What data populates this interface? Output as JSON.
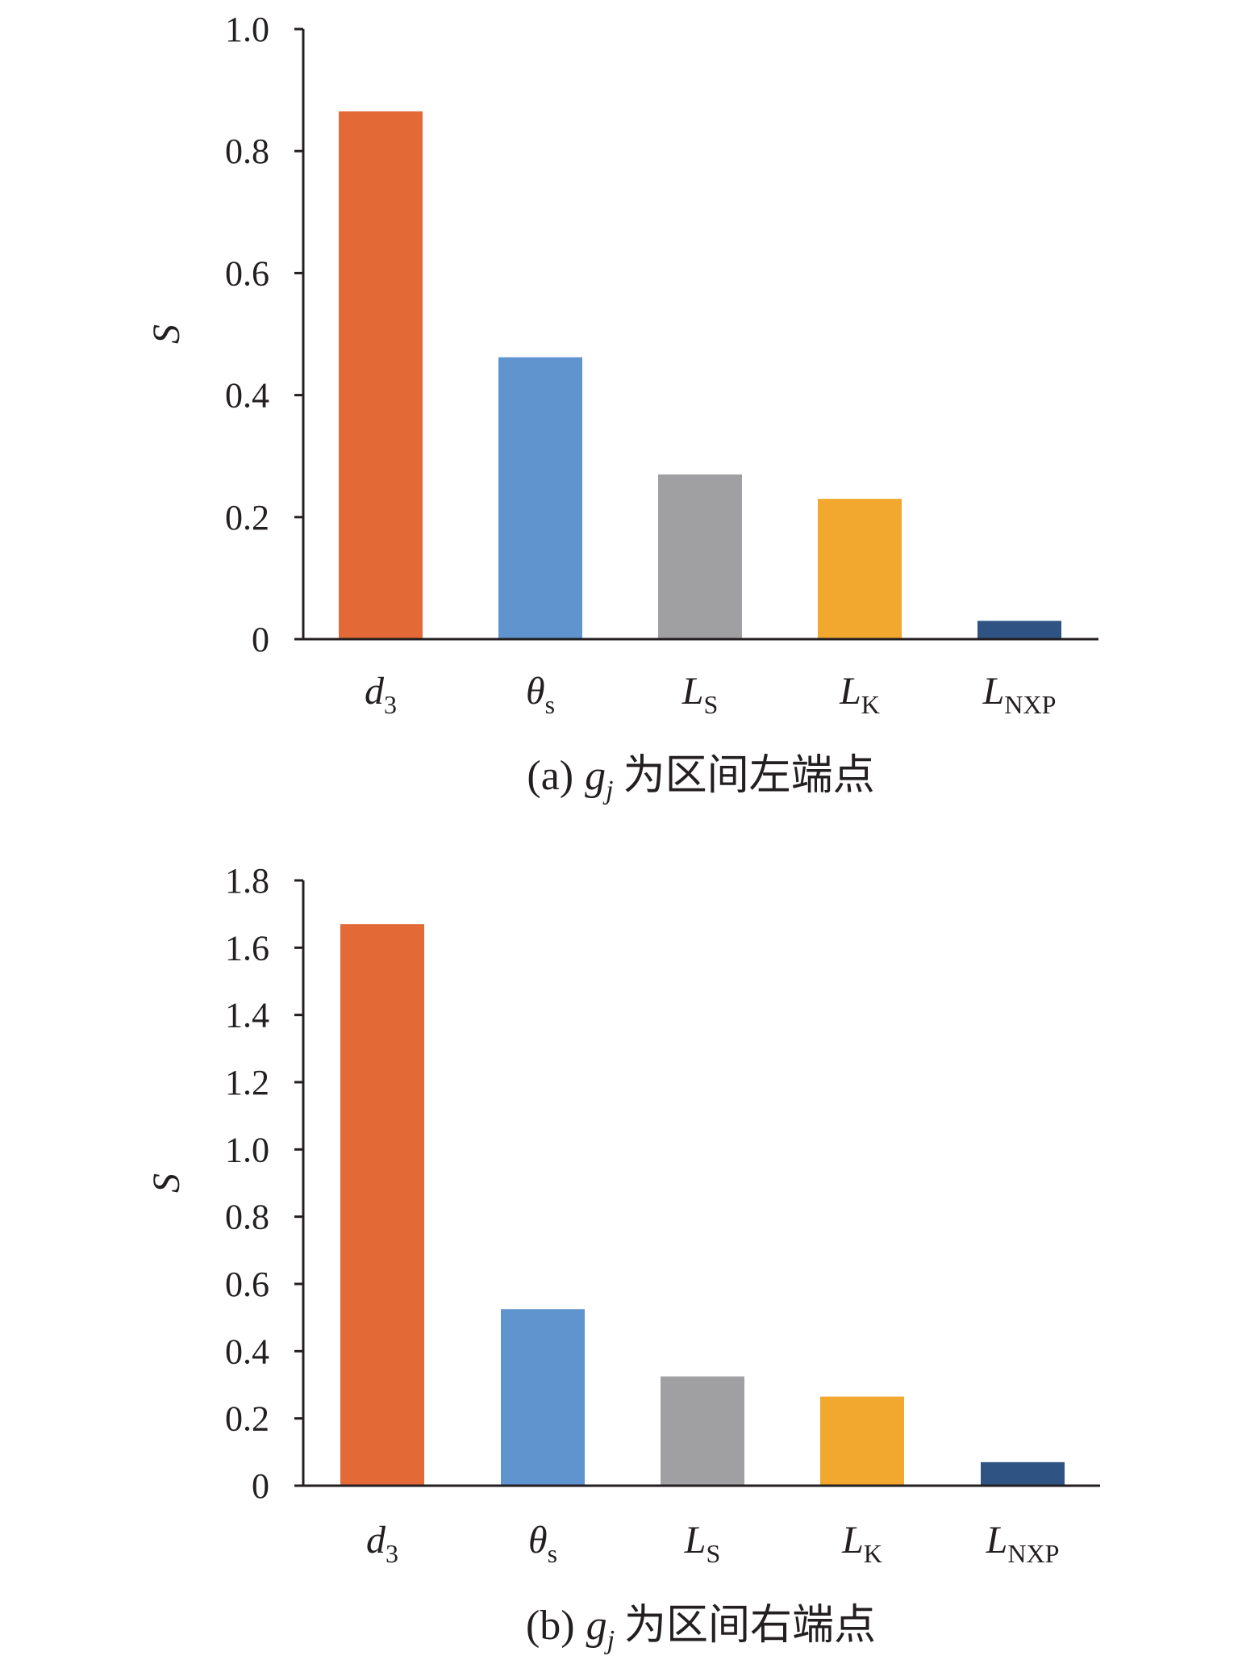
{
  "chart_data": [
    {
      "type": "bar",
      "caption": {
        "prefix": "(a)",
        "var_main": "g",
        "var_sub": "j",
        "text": "为区间左端点"
      },
      "ylabel": "S",
      "xlabel": "",
      "ylim": [
        0,
        1.0
      ],
      "yticks": [
        "0",
        "0.2",
        "0.4",
        "0.6",
        "0.8",
        "1.0"
      ],
      "categories": [
        {
          "main": "d",
          "sub": "3"
        },
        {
          "main": "θ",
          "sub": "s"
        },
        {
          "main": "L",
          "sub": "S"
        },
        {
          "main": "L",
          "sub": "K"
        },
        {
          "main": "L",
          "sub": "NXP"
        }
      ],
      "values": [
        0.865,
        0.462,
        0.27,
        0.23,
        0.03
      ],
      "colors": [
        "#E36937",
        "#5F94CE",
        "#A0A0A3",
        "#F2A72E",
        "#2F5483"
      ]
    },
    {
      "type": "bar",
      "caption": {
        "prefix": "(b)",
        "var_main": "g",
        "var_sub": "j",
        "text": "为区间右端点"
      },
      "ylabel": "S",
      "xlabel": "",
      "ylim": [
        0,
        1.8
      ],
      "yticks": [
        "0",
        "0.2",
        "0.4",
        "0.6",
        "0.8",
        "1.0",
        "1.2",
        "1.4",
        "1.6",
        "1.8"
      ],
      "categories": [
        {
          "main": "d",
          "sub": "3"
        },
        {
          "main": "θ",
          "sub": "s"
        },
        {
          "main": "L",
          "sub": "S"
        },
        {
          "main": "L",
          "sub": "K"
        },
        {
          "main": "L",
          "sub": "NXP"
        }
      ],
      "values": [
        1.67,
        0.525,
        0.325,
        0.265,
        0.07
      ],
      "colors": [
        "#E36937",
        "#5F94CE",
        "#A0A0A3",
        "#F2A72E",
        "#2F5483"
      ]
    }
  ]
}
